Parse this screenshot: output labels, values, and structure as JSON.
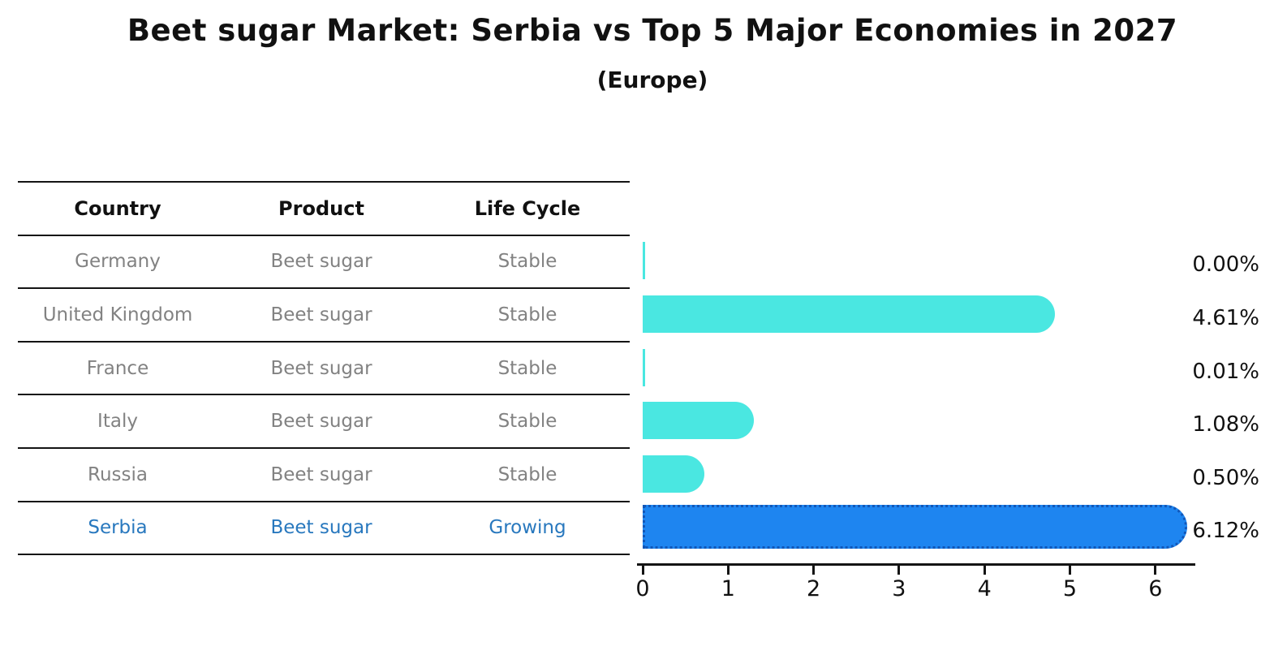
{
  "title": "Beet sugar Market: Serbia vs Top 5 Major Economies in 2027",
  "subtitle": "(Europe)",
  "table": {
    "headers": [
      "Country",
      "Product",
      "Life Cycle"
    ]
  },
  "rows": [
    {
      "country": "Germany",
      "product": "Beet sugar",
      "life_cycle": "Stable",
      "value": 0.0,
      "value_label": "0.00%",
      "highlighted": false
    },
    {
      "country": "United Kingdom",
      "product": "Beet sugar",
      "life_cycle": "Stable",
      "value": 4.61,
      "value_label": "4.61%",
      "highlighted": false
    },
    {
      "country": "France",
      "product": "Beet sugar",
      "life_cycle": "Stable",
      "value": 0.01,
      "value_label": "0.01%",
      "highlighted": false
    },
    {
      "country": "Italy",
      "product": "Beet sugar",
      "life_cycle": "Stable",
      "value": 1.08,
      "value_label": "1.08%",
      "highlighted": false
    },
    {
      "country": "Russia",
      "product": "Beet sugar",
      "life_cycle": "Stable",
      "value": 0.5,
      "value_label": "0.50%",
      "highlighted": false
    },
    {
      "country": "Serbia",
      "product": "Beet sugar",
      "life_cycle": "Growing",
      "value": 6.12,
      "value_label": "6.12%",
      "highlighted": true
    }
  ],
  "chart_data": {
    "type": "bar",
    "orientation": "horizontal",
    "title": "Beet sugar Market: Serbia vs Top 5 Major Economies in 2027",
    "subtitle": "(Europe)",
    "categories": [
      "Germany",
      "United Kingdom",
      "France",
      "Italy",
      "Russia",
      "Serbia"
    ],
    "values": [
      0.0,
      4.61,
      0.01,
      1.08,
      0.5,
      6.12
    ],
    "data_labels": [
      "0.00%",
      "4.61%",
      "0.01%",
      "1.08%",
      "0.50%",
      "6.12%"
    ],
    "xlabel": "",
    "ylabel": "",
    "xlim": [
      0,
      6.45
    ],
    "x_ticks": [
      "0",
      "1",
      "2",
      "3",
      "4",
      "5",
      "6"
    ],
    "grid": false,
    "legend": false,
    "highlight_index": 5
  },
  "colors": {
    "bar": "#4AE7E1",
    "highlight_bar": "#1E85F0",
    "highlight_border": "#1257B8",
    "muted_text": "#828282",
    "accent_text": "#2878BE",
    "axis": "#141414"
  }
}
